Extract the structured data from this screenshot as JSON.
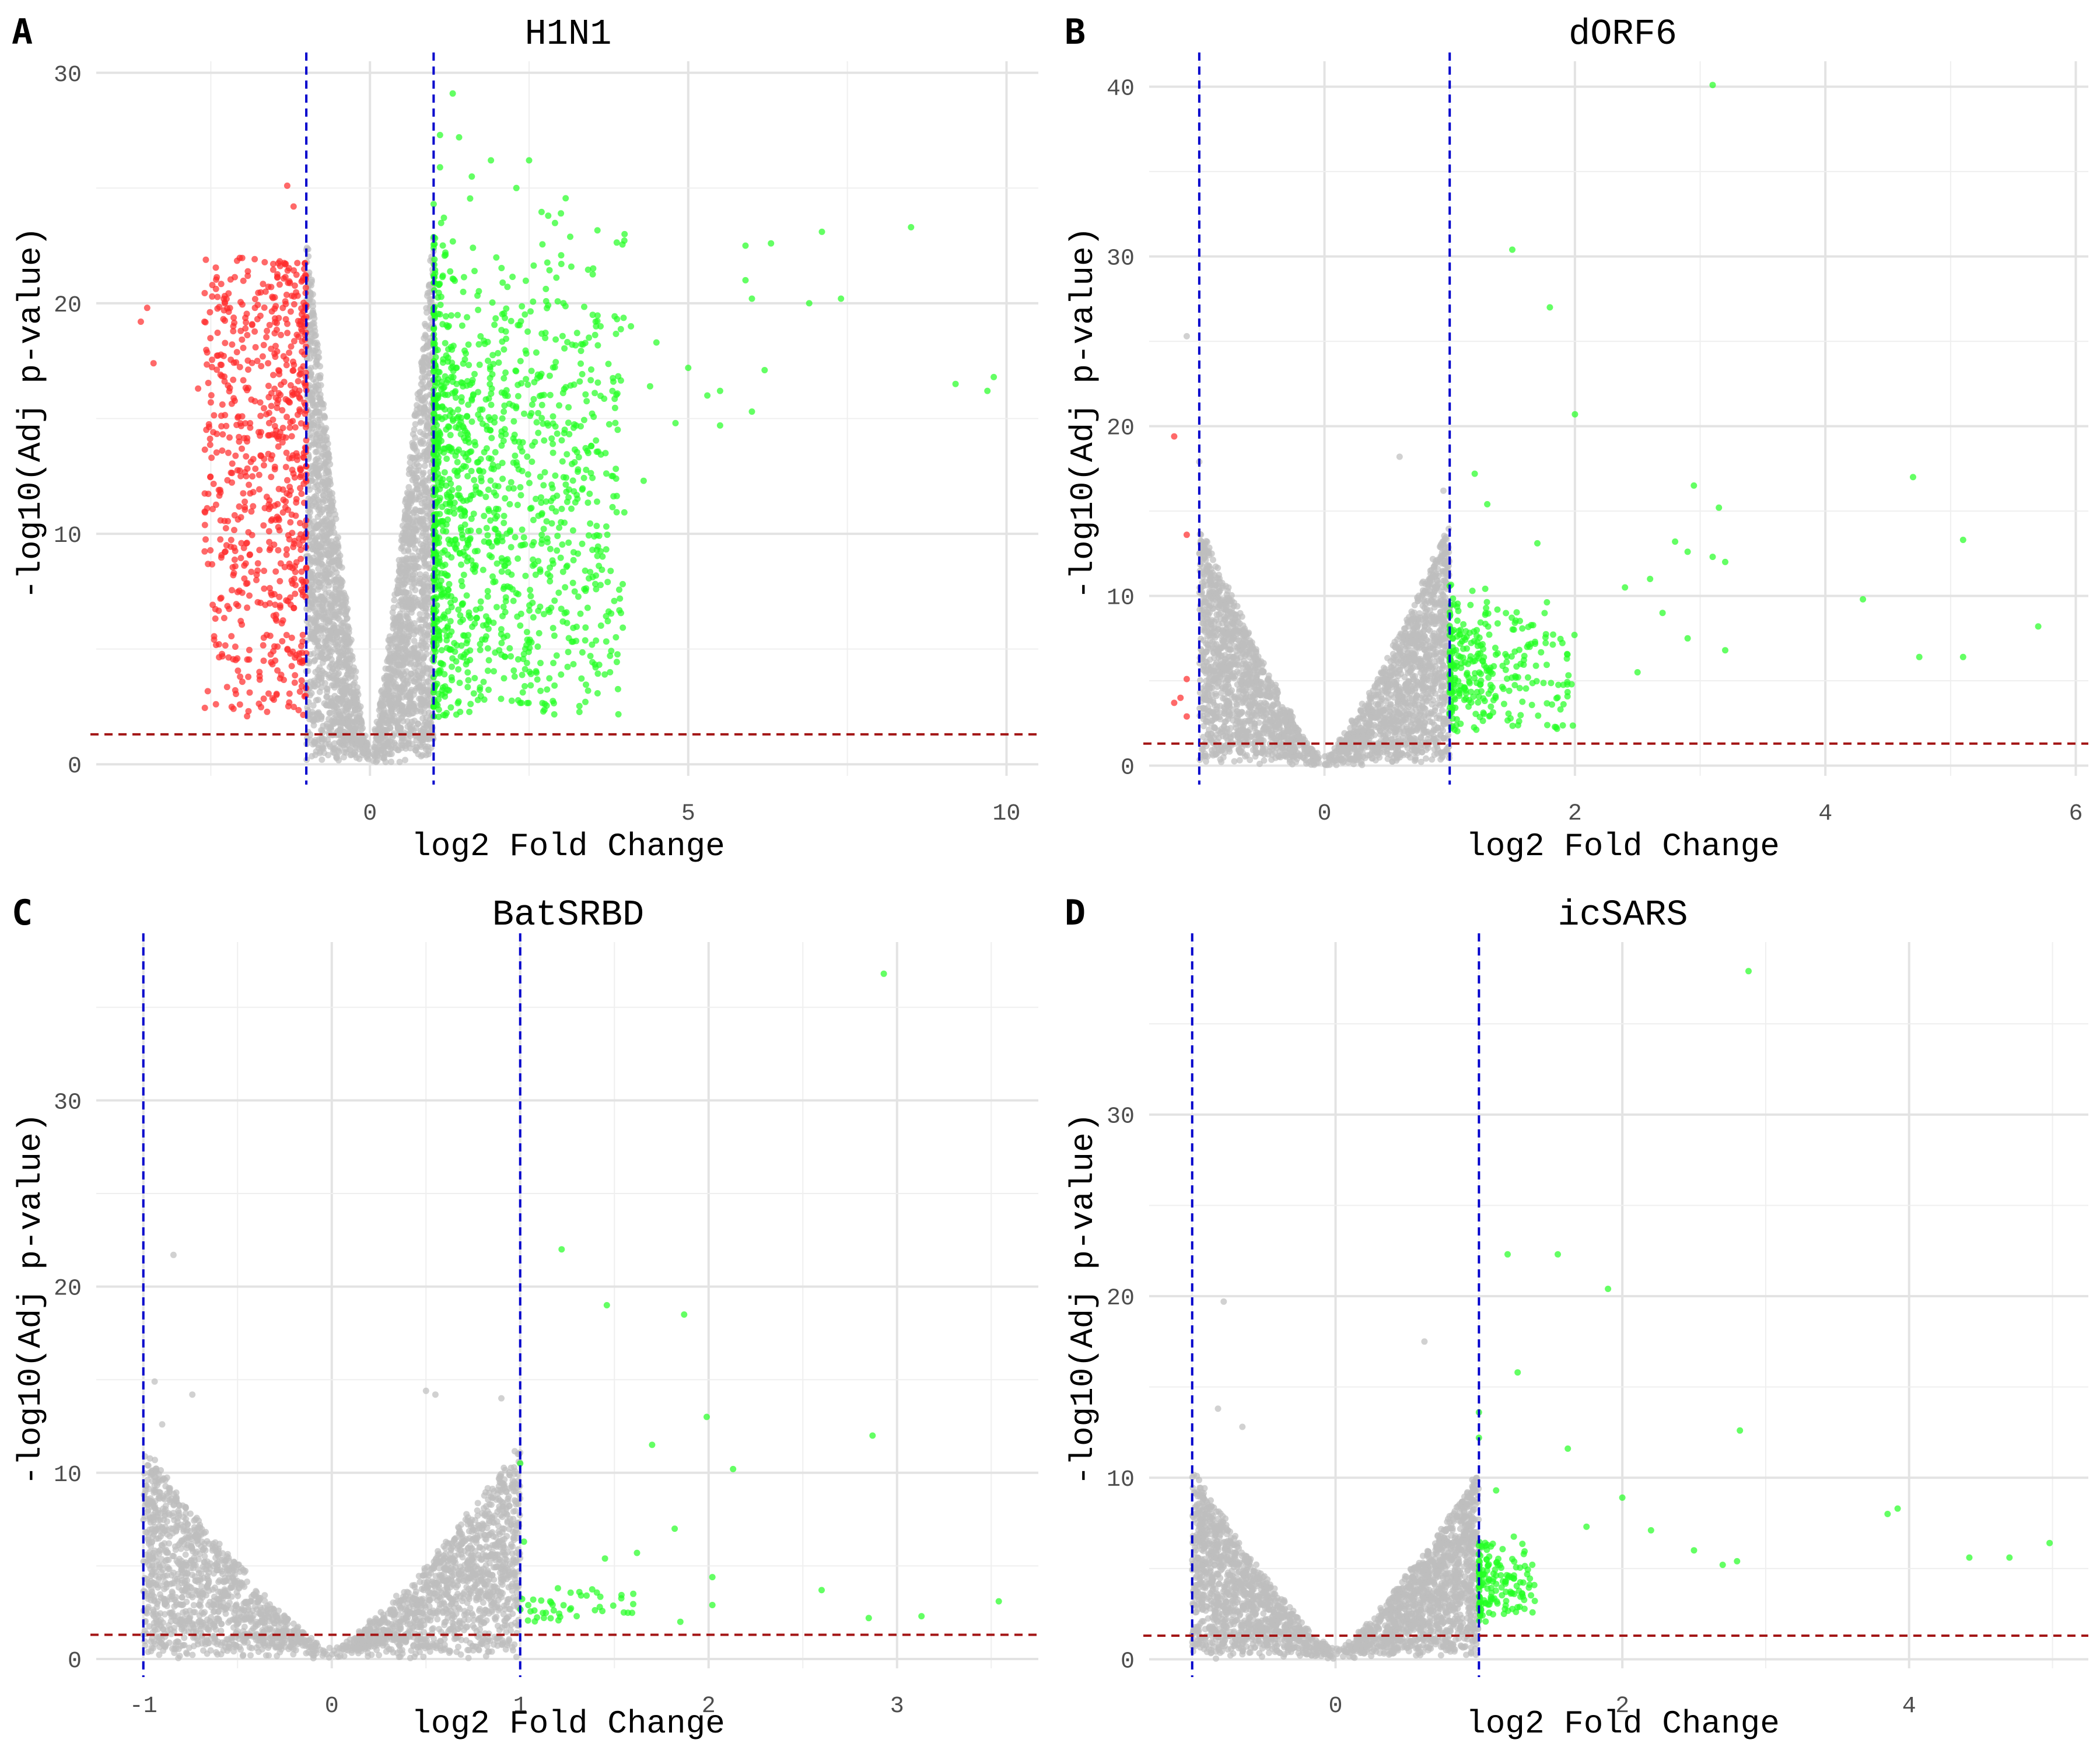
{
  "colors": {
    "not_significant": "#bdbdbd",
    "down": "#ff2a2a",
    "up": "#22ff22",
    "fc_cutoff_line": "#0000cc",
    "p_cutoff_line": "#a31515"
  },
  "chart_data": [
    {
      "type": "scatter",
      "panel_label": "A",
      "title": "H1N1",
      "xlabel": "log2 Fold Change",
      "ylabel": "-log10(Adj p-value)",
      "xlim": [
        -4.3,
        10.5
      ],
      "ylim": [
        -0.5,
        30.5
      ],
      "x_ticks": [
        0,
        5,
        10
      ],
      "y_ticks": [
        0,
        10,
        20,
        30
      ],
      "grid": true,
      "legend": "none",
      "fc_cutoffs": [
        -1,
        1
      ],
      "p_cutoff": 1.3,
      "cloud": {
        "n_grey": 2600,
        "n_down": 700,
        "n_up": 1300,
        "left_min": -1,
        "right_max": 4,
        "grey_peak": 23,
        "green_peak": 25,
        "red_peak": 22,
        "red_xmin": -2.6
      },
      "points": [
        [
          -3.5,
          19.8
        ],
        [
          -3.6,
          19.2
        ],
        [
          -3.4,
          17.4
        ],
        [
          -2.6,
          19.2
        ],
        [
          -2.7,
          16.3
        ],
        [
          -2.5,
          15.7
        ],
        [
          -1.3,
          25.1
        ],
        [
          -1.2,
          24.2
        ],
        [
          1.3,
          29.1
        ],
        [
          1.1,
          27.3
        ],
        [
          1.4,
          27.2
        ],
        [
          1.1,
          25.9
        ],
        [
          1.9,
          26.2
        ],
        [
          2.5,
          26.2
        ],
        [
          1.6,
          25.5
        ],
        [
          2.3,
          25.0
        ],
        [
          3.0,
          23.9
        ],
        [
          2.8,
          23.8
        ],
        [
          4.0,
          23.0
        ],
        [
          5.9,
          22.5
        ],
        [
          6.3,
          22.6
        ],
        [
          7.1,
          23.1
        ],
        [
          8.5,
          23.3
        ],
        [
          5.9,
          21.0
        ],
        [
          6.0,
          20.2
        ],
        [
          6.9,
          20.0
        ],
        [
          7.4,
          20.2
        ],
        [
          3.5,
          19.5
        ],
        [
          4.1,
          19.0
        ],
        [
          4.5,
          18.3
        ],
        [
          5.0,
          17.2
        ],
        [
          5.5,
          16.2
        ],
        [
          6.2,
          17.1
        ],
        [
          6.0,
          15.3
        ],
        [
          5.5,
          14.7
        ],
        [
          9.2,
          16.5
        ],
        [
          9.7,
          16.2
        ],
        [
          9.8,
          16.8
        ],
        [
          3.2,
          14.6
        ],
        [
          3.7,
          13.5
        ],
        [
          4.3,
          12.3
        ],
        [
          3.0,
          10.5
        ],
        [
          3.2,
          9.2
        ],
        [
          2.9,
          7.1
        ],
        [
          2.5,
          5.3
        ],
        [
          4.8,
          14.8
        ],
        [
          5.3,
          16.0
        ],
        [
          4.4,
          16.4
        ]
      ],
      "point_colors": [
        "down",
        "down",
        "down",
        "down",
        "down",
        "down",
        "down",
        "down",
        "up",
        "up",
        "up",
        "up",
        "up",
        "up",
        "up",
        "up",
        "up",
        "up",
        "up",
        "up",
        "up",
        "up",
        "up",
        "up",
        "up",
        "up",
        "up",
        "up",
        "up",
        "up",
        "up",
        "up",
        "up",
        "up",
        "up",
        "up",
        "up",
        "up",
        "up",
        "up",
        "up",
        "up",
        "up",
        "up",
        "up",
        "up",
        "up",
        "up"
      ]
    },
    {
      "type": "scatter",
      "panel_label": "B",
      "title": "dORF6",
      "xlabel": "log2 Fold Change",
      "ylabel": "-log10(Adj p-value)",
      "xlim": [
        -1.4,
        6.1
      ],
      "ylim": [
        -0.6,
        41.5
      ],
      "x_ticks": [
        0,
        2,
        4,
        6
      ],
      "y_ticks": [
        0,
        10,
        20,
        30,
        40
      ],
      "grid": true,
      "legend": "none",
      "fc_cutoffs": [
        -1,
        1
      ],
      "p_cutoff": 1.3,
      "cloud": {
        "n_grey": 2600,
        "n_down": 0,
        "n_up": 300,
        "left_min": -1,
        "right_max": 2,
        "grey_peak": 14,
        "green_peak": 11,
        "red_peak": 0,
        "red_xmin": -1
      },
      "points": [
        [
          3.1,
          40.1
        ],
        [
          1.5,
          30.4
        ],
        [
          1.8,
          27.0
        ],
        [
          2.0,
          20.7
        ],
        [
          -1.1,
          25.3
        ],
        [
          -1.0,
          17.9
        ],
        [
          -1.1,
          13.6
        ],
        [
          -1.2,
          19.4
        ],
        [
          -1.1,
          5.1
        ],
        [
          -1.2,
          3.7
        ],
        [
          -1.1,
          2.9
        ],
        [
          -1.15,
          4.0
        ],
        [
          0.6,
          18.2
        ],
        [
          0.95,
          16.2
        ],
        [
          1.2,
          17.2
        ],
        [
          1.3,
          15.4
        ],
        [
          1.7,
          13.1
        ],
        [
          2.95,
          16.5
        ],
        [
          3.15,
          15.2
        ],
        [
          3.1,
          12.3
        ],
        [
          3.2,
          12.0
        ],
        [
          4.7,
          17.0
        ],
        [
          5.1,
          13.3
        ],
        [
          4.3,
          9.8
        ],
        [
          4.75,
          6.4
        ],
        [
          5.1,
          6.4
        ],
        [
          5.7,
          8.2
        ],
        [
          2.4,
          10.5
        ],
        [
          2.6,
          11.0
        ],
        [
          2.7,
          9.0
        ],
        [
          2.9,
          12.6
        ],
        [
          2.9,
          7.5
        ],
        [
          2.5,
          5.5
        ],
        [
          3.2,
          6.8
        ],
        [
          2.8,
          13.2
        ]
      ],
      "point_colors": [
        "up",
        "up",
        "up",
        "up",
        "ns",
        "ns",
        "down",
        "down",
        "down",
        "down",
        "down",
        "down",
        "ns",
        "ns",
        "up",
        "up",
        "up",
        "up",
        "up",
        "up",
        "up",
        "up",
        "up",
        "up",
        "up",
        "up",
        "up",
        "up",
        "up",
        "up",
        "up",
        "up",
        "up",
        "up",
        "up"
      ]
    },
    {
      "type": "scatter",
      "panel_label": "C",
      "title": "BatSRBD",
      "xlabel": "log2 Fold Change",
      "ylabel": "-log10(Adj p-value)",
      "xlim": [
        -1.25,
        3.75
      ],
      "ylim": [
        -0.5,
        38.5
      ],
      "x_ticks": [
        -1,
        0,
        1,
        2,
        3
      ],
      "y_ticks": [
        0,
        10,
        20,
        30
      ],
      "grid": true,
      "legend": "none",
      "fc_cutoffs": [
        -1,
        1
      ],
      "p_cutoff": 1.3,
      "cloud": {
        "n_grey": 2400,
        "n_down": 0,
        "n_up": 40,
        "left_min": -1,
        "right_max": 1.6,
        "grey_peak": 11,
        "green_peak": 4,
        "red_peak": 0,
        "red_xmin": -1
      },
      "points": [
        [
          2.93,
          36.8
        ],
        [
          1.22,
          22.0
        ],
        [
          -0.84,
          21.7
        ],
        [
          1.46,
          19.0
        ],
        [
          1.87,
          18.5
        ],
        [
          -0.94,
          14.9
        ],
        [
          -0.74,
          14.2
        ],
        [
          -0.9,
          12.6
        ],
        [
          0.5,
          14.4
        ],
        [
          0.55,
          14.2
        ],
        [
          0.9,
          14.0
        ],
        [
          1.0,
          10.5
        ],
        [
          1.7,
          11.5
        ],
        [
          1.99,
          13.0
        ],
        [
          2.87,
          12.0
        ],
        [
          2.13,
          10.2
        ],
        [
          1.82,
          7.0
        ],
        [
          2.02,
          4.4
        ],
        [
          2.02,
          2.9
        ],
        [
          2.6,
          3.7
        ],
        [
          2.85,
          2.2
        ],
        [
          3.13,
          2.3
        ],
        [
          3.54,
          3.1
        ],
        [
          1.62,
          5.7
        ],
        [
          1.45,
          5.4
        ],
        [
          1.02,
          6.3
        ],
        [
          1.3,
          2.3
        ],
        [
          1.55,
          2.5
        ],
        [
          1.85,
          2.0
        ],
        [
          1.6,
          3.5
        ],
        [
          1.2,
          3.8
        ]
      ],
      "point_colors": [
        "up",
        "up",
        "ns",
        "up",
        "up",
        "ns",
        "ns",
        "ns",
        "ns",
        "ns",
        "ns",
        "up",
        "up",
        "up",
        "up",
        "up",
        "up",
        "up",
        "up",
        "up",
        "up",
        "up",
        "up",
        "up",
        "up",
        "up",
        "up",
        "up",
        "up",
        "up",
        "up"
      ]
    },
    {
      "type": "scatter",
      "panel_label": "D",
      "title": "icSARS",
      "xlabel": "log2 Fold Change",
      "ylabel": "-log10(Adj p-value)",
      "xlim": [
        -1.3,
        5.25
      ],
      "ylim": [
        -0.5,
        39.5
      ],
      "x_ticks": [
        0,
        2,
        4
      ],
      "y_ticks": [
        0,
        10,
        20,
        30
      ],
      "grid": true,
      "legend": "none",
      "fc_cutoffs": [
        -1,
        1
      ],
      "p_cutoff": 1.3,
      "cloud": {
        "n_grey": 2500,
        "n_down": 0,
        "n_up": 150,
        "left_min": -1,
        "right_max": 1.4,
        "grey_peak": 10,
        "green_peak": 7,
        "red_peak": 0,
        "red_xmin": -1
      },
      "points": [
        [
          2.88,
          37.9
        ],
        [
          1.2,
          22.3
        ],
        [
          1.55,
          22.3
        ],
        [
          1.9,
          20.4
        ],
        [
          -0.78,
          19.7
        ],
        [
          0.62,
          17.5
        ],
        [
          1.27,
          15.8
        ],
        [
          1.62,
          11.6
        ],
        [
          2.82,
          12.6
        ],
        [
          -0.82,
          13.8
        ],
        [
          -0.65,
          12.8
        ],
        [
          1.0,
          13.6
        ],
        [
          1.0,
          12.2
        ],
        [
          1.12,
          9.3
        ],
        [
          2.0,
          8.9
        ],
        [
          3.85,
          8.0
        ],
        [
          3.92,
          8.3
        ],
        [
          4.42,
          5.6
        ],
        [
          4.7,
          5.6
        ],
        [
          4.98,
          6.4
        ],
        [
          1.75,
          7.3
        ],
        [
          2.2,
          7.1
        ],
        [
          2.5,
          6.0
        ],
        [
          2.7,
          5.2
        ],
        [
          2.8,
          5.4
        ]
      ],
      "point_colors": [
        "up",
        "up",
        "up",
        "up",
        "ns",
        "ns",
        "up",
        "up",
        "up",
        "ns",
        "ns",
        "up",
        "up",
        "up",
        "up",
        "up",
        "up",
        "up",
        "up",
        "up",
        "up",
        "up",
        "up",
        "up",
        "up"
      ]
    }
  ]
}
